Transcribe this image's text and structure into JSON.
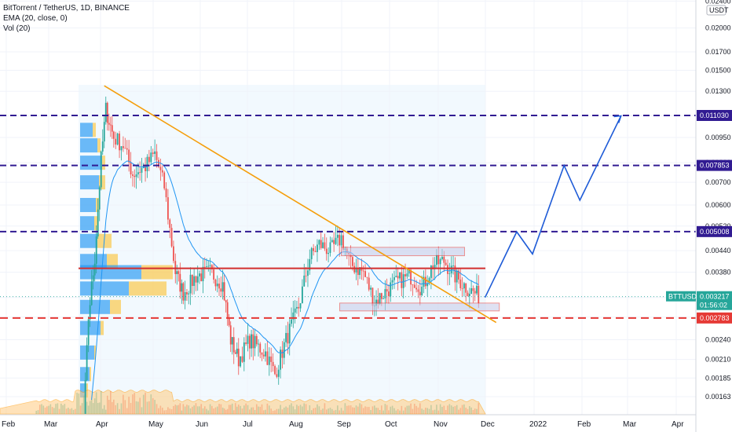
{
  "legend": {
    "symbol": "BitTorrent / TetherUS, 1D, BINANCE",
    "ema": "EMA (20, close, 0)",
    "vol": "Vol (20)"
  },
  "currency": "USDT",
  "ticker": "BTTUSDT",
  "last_price": "0.003217",
  "countdown": "01:56:02",
  "chart_data": {
    "type": "candlestick",
    "title": "BitTorrent / TetherUS, 1D, BINANCE",
    "scale": "log",
    "y_ticks": [
      0.024,
      0.02,
      0.017,
      0.015,
      0.013,
      0.011,
      0.0095,
      0.008,
      0.007,
      0.006,
      0.0052,
      0.0044,
      0.0038,
      0.0032,
      0.0028,
      0.0024,
      0.0021,
      0.00185,
      0.00163
    ],
    "x_ticks": [
      "Feb",
      "Mar",
      "Apr",
      "May",
      "Jun",
      "Jul",
      "Aug",
      "Sep",
      "Oct",
      "Nov",
      "Dec",
      "2022",
      "Feb",
      "Mar",
      "Apr"
    ],
    "levels": [
      {
        "value": 0.01103,
        "label": "0.011030",
        "color": "#311b92"
      },
      {
        "value": 0.007853,
        "label": "0.007853",
        "color": "#311b92"
      },
      {
        "value": 0.005008,
        "label": "0.005008",
        "color": "#311b92"
      },
      {
        "value": 0.002783,
        "label": "0.002783",
        "color": "#e53935"
      }
    ],
    "red_resistance": 0.0039,
    "trendline": {
      "from": {
        "date": "2021-04-04",
        "value": 0.0135
      },
      "to": {
        "date": "2021-12-08",
        "value": 0.0027
      }
    },
    "zones": [
      {
        "from_date": "2021-09-01",
        "to_date": "2021-11-18",
        "low": 0.00425,
        "high": 0.0045
      },
      {
        "from_date": "2021-08-31",
        "to_date": "2021-12-10",
        "low": 0.00292,
        "high": 0.00308
      }
    ],
    "projection": [
      {
        "date": "2021-12-01",
        "value": 0.0032
      },
      {
        "date": "2021-12-21",
        "value": 0.005
      },
      {
        "date": "2021-12-31",
        "value": 0.0043
      },
      {
        "date": "2022-01-20",
        "value": 0.00785
      },
      {
        "date": "2022-01-30",
        "value": 0.0062
      },
      {
        "date": "2022-02-25",
        "value": 0.011
      }
    ],
    "last": {
      "value": 0.003217,
      "label": "0.003217"
    }
  }
}
